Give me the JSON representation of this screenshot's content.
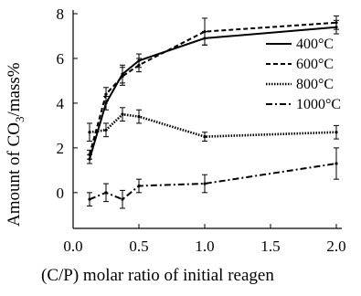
{
  "chart_data": {
    "type": "line",
    "title": "",
    "xlabel": "(C/P) molar ratio of initial reagen",
    "ylabel_prefix": "Amount of CO",
    "ylabel_sub": "3",
    "ylabel_suffix": "/mass%",
    "xlim": [
      0,
      2.0
    ],
    "ylim": [
      -1.6,
      8
    ],
    "xticks": [
      0.0,
      0.5,
      1.0,
      1.5,
      2.0
    ],
    "xtick_labels": [
      "0.0",
      "0.5",
      "1.0",
      "1.5",
      "2.0"
    ],
    "yticks": [
      0,
      2,
      4,
      6,
      8
    ],
    "ytick_labels": [
      "0",
      "2",
      "4",
      "6",
      "8"
    ],
    "grid": false,
    "legend_position": "top-right",
    "series": [
      {
        "name": "400°C",
        "style": "solid",
        "x": [
          0.125,
          0.25,
          0.375,
          0.5,
          1.0,
          2.0
        ],
        "y": [
          1.5,
          4.0,
          5.3,
          5.9,
          6.9,
          7.4
        ],
        "err": [
          0.2,
          0.3,
          0.4,
          0.3,
          0.3,
          0.3
        ]
      },
      {
        "name": "600°C",
        "style": "dashed",
        "x": [
          0.125,
          0.25,
          0.375,
          0.5,
          1.0,
          2.0
        ],
        "y": [
          1.7,
          4.4,
          5.2,
          5.7,
          7.2,
          7.6
        ],
        "err": [
          0.2,
          0.3,
          0.4,
          0.3,
          0.6,
          0.3
        ]
      },
      {
        "name": "800°C",
        "style": "dotted",
        "x": [
          0.125,
          0.25,
          0.375,
          0.5,
          1.0,
          2.0
        ],
        "y": [
          2.7,
          2.8,
          3.5,
          3.4,
          2.5,
          2.7
        ],
        "err": [
          0.4,
          0.3,
          0.3,
          0.3,
          0.2,
          0.3
        ]
      },
      {
        "name": "1000°C",
        "style": "dash-dot",
        "x": [
          0.125,
          0.25,
          0.375,
          0.5,
          1.0,
          2.0
        ],
        "y": [
          -0.3,
          0.0,
          -0.3,
          0.3,
          0.4,
          1.3
        ],
        "err": [
          0.3,
          0.4,
          0.4,
          0.3,
          0.4,
          0.7
        ]
      }
    ]
  }
}
